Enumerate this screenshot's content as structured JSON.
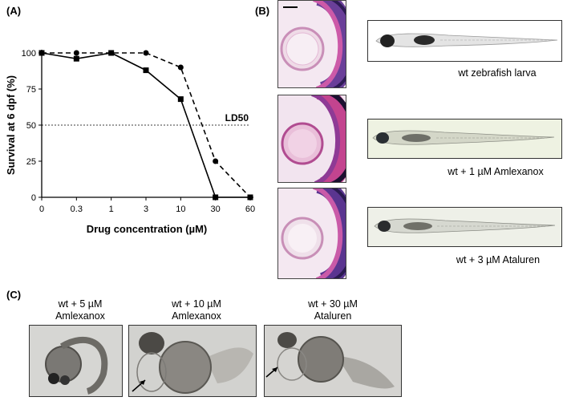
{
  "panels": {
    "a_label": "(A)",
    "b_label": "(B)",
    "c_label": "(C)"
  },
  "chart_data": {
    "type": "line",
    "categories": [
      "0",
      "0.3",
      "1",
      "3",
      "10",
      "30",
      "60"
    ],
    "series": [
      {
        "style": "solid",
        "marker": "square",
        "values": [
          100,
          96,
          100,
          88,
          68,
          0,
          0
        ]
      },
      {
        "style": "dashed",
        "marker": "circle",
        "values": [
          100,
          100,
          100,
          100,
          90,
          25,
          0
        ]
      }
    ],
    "reference_line": {
      "value": 50,
      "label": "LD50"
    },
    "ylabel": "Survival at 6 dpf (%)",
    "xlabel": "Drug concentration (µM)",
    "yticks": [
      0,
      25,
      50,
      75,
      100
    ],
    "ylim": [
      0,
      100
    ],
    "grid": false
  },
  "panel_b": {
    "rows": [
      {
        "caption": "wt zebrafish larva"
      },
      {
        "caption": "wt + 1 µM Amlexanox"
      },
      {
        "caption": "wt + 3 µM Ataluren"
      }
    ]
  },
  "panel_c": {
    "images": [
      {
        "line1": "wt + 5 µM",
        "line2": "Amlexanox"
      },
      {
        "line1": "wt + 10 µM",
        "line2": "Amlexanox"
      },
      {
        "line1": "wt + 30 µM",
        "line2": "Ataluren"
      }
    ]
  }
}
